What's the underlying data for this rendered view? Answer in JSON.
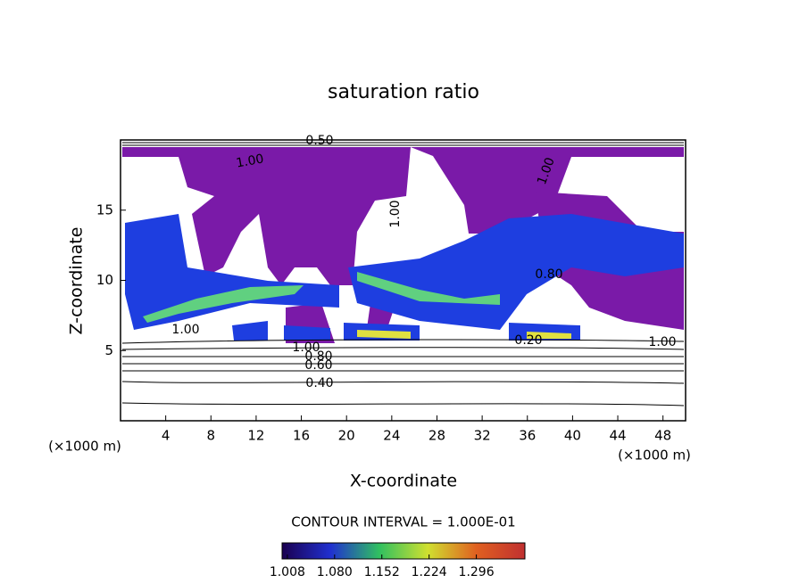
{
  "chart_data": {
    "type": "contour",
    "title": "saturation ratio",
    "x_label": "X-coordinate",
    "y_label": "Z-coordinate",
    "axis_unit": "(×1000 m)",
    "xlim": [
      0,
      50
    ],
    "xticks": [
      4,
      8,
      12,
      16,
      20,
      24,
      28,
      32,
      36,
      40,
      44,
      48
    ],
    "ylim": [
      0,
      20
    ],
    "yticks": [
      5,
      10,
      15
    ],
    "contour_labels": [
      {
        "value": 0.5,
        "label": "0.50"
      },
      {
        "value": 1,
        "label": "1.00"
      },
      {
        "value": 1,
        "label": "1.00"
      },
      {
        "value": 1,
        "label": "1.00"
      },
      {
        "value": 1,
        "label": "1.00"
      },
      {
        "value": 1,
        "label": "1.00"
      },
      {
        "value": 0.8,
        "label": "0.80"
      },
      {
        "value": 0.6,
        "label": "0.60"
      },
      {
        "value": 0.4,
        "label": "0.40"
      },
      {
        "value": 0.2,
        "label": "0.20"
      },
      {
        "value": 1,
        "label": "1.00"
      },
      {
        "value": 0.8,
        "label": "0.80"
      }
    ],
    "contour_interval": "CONTOUR INTERVAL = 1.000E-01",
    "colorbar_lim": [
      1.0,
      1.37
    ],
    "colorbar_ticks": [
      1.008,
      {
        "value": 1.08,
        "label": "1.080"
      },
      1.152,
      1.224,
      1.296
    ]
  }
}
